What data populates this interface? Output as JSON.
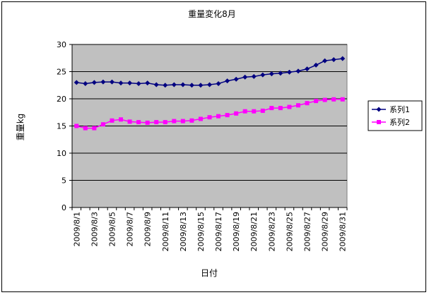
{
  "chart_data": {
    "type": "line",
    "title": "重量変化8月",
    "xlabel": "日付",
    "ylabel": "重量kg",
    "ylim": [
      0,
      30
    ],
    "yticks": [
      0,
      5,
      10,
      15,
      20,
      25,
      30
    ],
    "grid": true,
    "legend_position": "right",
    "plot_background": "#c0c0c0",
    "categories": [
      "2009/8/1",
      "2009/8/2",
      "2009/8/3",
      "2009/8/4",
      "2009/8/5",
      "2009/8/6",
      "2009/8/7",
      "2009/8/8",
      "2009/8/9",
      "2009/8/10",
      "2009/8/11",
      "2009/8/12",
      "2009/8/13",
      "2009/8/14",
      "2009/8/15",
      "2009/8/16",
      "2009/8/17",
      "2009/8/18",
      "2009/8/19",
      "2009/8/20",
      "2009/8/21",
      "2009/8/22",
      "2009/8/23",
      "2009/8/24",
      "2009/8/25",
      "2009/8/26",
      "2009/8/27",
      "2009/8/28",
      "2009/8/29",
      "2009/8/30",
      "2009/8/31"
    ],
    "x_tick_labels": [
      "2009/8/1",
      "2009/8/3",
      "2009/8/5",
      "2009/8/7",
      "2009/8/9",
      "2009/8/11",
      "2009/8/13",
      "2009/8/15",
      "2009/8/17",
      "2009/8/19",
      "2009/8/21",
      "2009/8/23",
      "2009/8/25",
      "2009/8/27",
      "2009/8/29",
      "2009/8/31"
    ],
    "series": [
      {
        "name": "系列1",
        "color": "#000080",
        "marker": "diamond",
        "values": [
          23.0,
          22.8,
          23.0,
          23.1,
          23.1,
          22.9,
          22.9,
          22.8,
          22.9,
          22.6,
          22.5,
          22.6,
          22.6,
          22.5,
          22.5,
          22.6,
          22.8,
          23.3,
          23.6,
          24.0,
          24.1,
          24.4,
          24.6,
          24.7,
          24.9,
          25.1,
          25.5,
          26.2,
          27.0,
          27.2,
          27.4
        ]
      },
      {
        "name": "系列2",
        "color": "#ff00ff",
        "marker": "square",
        "values": [
          15.0,
          14.6,
          14.6,
          15.3,
          16.0,
          16.2,
          15.8,
          15.7,
          15.6,
          15.7,
          15.7,
          15.9,
          15.9,
          16.0,
          16.3,
          16.6,
          16.8,
          17.0,
          17.3,
          17.7,
          17.7,
          17.8,
          18.3,
          18.3,
          18.5,
          18.8,
          19.2,
          19.6,
          19.8,
          19.9,
          19.9
        ]
      }
    ]
  }
}
